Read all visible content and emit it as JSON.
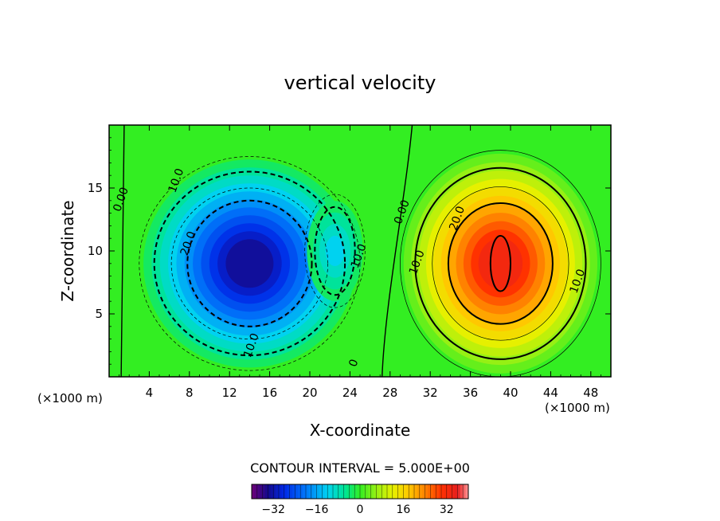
{
  "chart_data": {
    "type": "contour",
    "title": "vertical velocity",
    "xlabel": "X-coordinate",
    "ylabel": "Z-coordinate",
    "x_unit_left": "(×1000 m)",
    "x_unit_right": "(×1000 m)",
    "xlim": [
      0,
      50
    ],
    "ylim": [
      0,
      20
    ],
    "x_ticks": [
      4,
      8,
      12,
      16,
      20,
      24,
      28,
      32,
      36,
      40,
      44,
      48
    ],
    "x_tick_labels": [
      "4",
      "8",
      "12",
      "16",
      "20",
      "24",
      "28",
      "32",
      "36",
      "40",
      "44",
      "48"
    ],
    "y_ticks": [
      5,
      10,
      15
    ],
    "y_tick_labels": [
      "5",
      "10",
      "15"
    ],
    "contour_interval_text": "CONTOUR INTERVAL = 5.000E+00",
    "contour_interval": 5,
    "extrema": [
      {
        "kind": "min",
        "x": 14,
        "z": 9,
        "value": -34
      },
      {
        "kind": "max",
        "x": 39,
        "z": 9,
        "value": 35
      },
      {
        "kind": "min",
        "x": 22.5,
        "z": 10,
        "value": -12
      }
    ],
    "contour_labels": [
      {
        "text": "0.00",
        "x": 1.5,
        "z": 14
      },
      {
        "text": "10.0",
        "x": 7,
        "z": 15.5
      },
      {
        "text": "20.0",
        "x": 8.2,
        "z": 10.5
      },
      {
        "text": "10.0",
        "x": 14.5,
        "z": 2.4
      },
      {
        "text": "10.0",
        "x": 25.2,
        "z": 9.5
      },
      {
        "text": "0",
        "x": 24.7,
        "z": 1
      },
      {
        "text": "0.00",
        "x": 29.5,
        "z": 13
      },
      {
        "text": "20.0",
        "x": 35,
        "z": 12.5
      },
      {
        "text": "10.0",
        "x": 31,
        "z": 9
      },
      {
        "text": "10.0",
        "x": 47,
        "z": 7.5
      }
    ],
    "colorbar": {
      "range": [
        -40,
        40
      ],
      "ticks": [
        -32,
        -16,
        0,
        16,
        32
      ],
      "tick_labels": [
        "−32",
        "−16",
        "0",
        "16",
        "32"
      ]
    }
  }
}
